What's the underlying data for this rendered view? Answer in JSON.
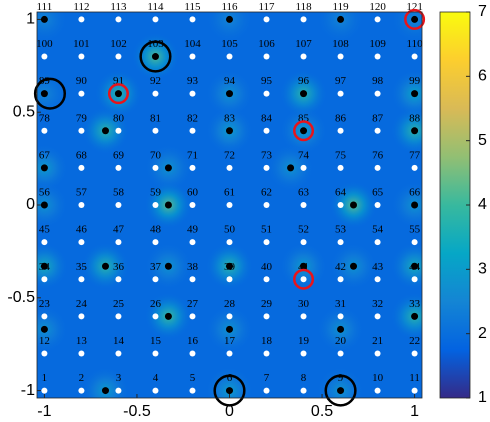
{
  "chart_data": {
    "type": "heatmap",
    "xlim": [
      -1.04,
      1.04
    ],
    "ylim": [
      -1.04,
      1.04
    ],
    "xticks": [
      -1,
      -0.5,
      0,
      0.5,
      1
    ],
    "yticks": [
      -1,
      -0.5,
      0,
      0.5,
      1
    ],
    "clim": [
      1,
      7
    ],
    "cticks": [
      1,
      2,
      3,
      4,
      5,
      6,
      7
    ],
    "colormap": [
      "#352a87",
      "#0363e1",
      "#1485d4",
      "#06a7c6",
      "#38b99e",
      "#92bf73",
      "#d9ba56",
      "#fcce2e",
      "#f9fb0e"
    ],
    "background_value": 1.9,
    "nodes": {
      "x": [
        -1,
        -0.8,
        -0.6,
        -0.4,
        -0.2,
        0,
        0.2,
        0.4,
        0.6,
        0.8,
        1
      ],
      "y": [
        -1,
        -0.8,
        -0.6,
        -0.4,
        -0.2,
        0,
        0.2,
        0.4,
        0.6,
        0.8,
        1
      ],
      "color": "#ffffff",
      "labels": [
        1,
        2,
        3,
        4,
        5,
        6,
        7,
        8,
        9,
        10,
        11,
        12,
        13,
        14,
        15,
        16,
        17,
        18,
        19,
        20,
        21,
        22,
        23,
        24,
        25,
        26,
        27,
        28,
        29,
        30,
        31,
        32,
        33,
        34,
        35,
        36,
        37,
        38,
        39,
        40,
        41,
        42,
        43,
        44,
        45,
        46,
        47,
        48,
        49,
        50,
        51,
        52,
        53,
        54,
        55,
        56,
        57,
        58,
        59,
        60,
        61,
        62,
        63,
        64,
        65,
        66,
        67,
        68,
        69,
        70,
        71,
        72,
        73,
        74,
        75,
        76,
        77,
        78,
        79,
        80,
        81,
        82,
        83,
        84,
        85,
        86,
        87,
        88,
        89,
        90,
        91,
        92,
        93,
        94,
        95,
        96,
        97,
        98,
        99,
        100,
        101,
        102,
        103,
        104,
        105,
        106,
        107,
        108,
        109,
        110,
        111,
        112,
        113,
        114,
        115,
        116,
        117,
        118,
        119,
        120,
        121
      ]
    },
    "sources": {
      "color": "#000000",
      "x": [
        -1,
        -0.4,
        0,
        0.6,
        1,
        -1,
        -0.6,
        0,
        0.4,
        1,
        -0.67,
        0,
        0.4,
        1,
        -1,
        -0.33,
        0.33,
        -0.33,
        0.67,
        -1,
        1,
        -1,
        -0.67,
        -0.33,
        0,
        0.4,
        0.67,
        1,
        -1,
        -0.33,
        1,
        0,
        0.6,
        -0.67,
        0,
        0.6
      ],
      "y": [
        1,
        0.8,
        1,
        1,
        1,
        0.6,
        0.6,
        0.6,
        0.6,
        0.6,
        0.4,
        0.4,
        0.4,
        0.4,
        0.2,
        0.2,
        0.2,
        0,
        0,
        0,
        0,
        -0.33,
        -0.33,
        -0.33,
        -0.33,
        -0.33,
        -0.33,
        -0.33,
        -0.67,
        -0.6,
        -0.6,
        -0.67,
        -0.67,
        -1,
        -1,
        -1
      ],
      "values": [
        2.5,
        4.2,
        2.5,
        2.5,
        2.5,
        2.5,
        3.8,
        2.8,
        3.8,
        3.2,
        3.8,
        3,
        3,
        3.8,
        3,
        2.8,
        2.8,
        4.3,
        4.3,
        2.8,
        2.8,
        3.5,
        3.8,
        2.8,
        3.8,
        3,
        2.8,
        3.5,
        2.8,
        4,
        3.8,
        2.8,
        2.8,
        3,
        3,
        2.8
      ]
    },
    "circles": [
      {
        "color": "#000000",
        "x": [
          -0.4,
          -0.97,
          0,
          0.6
        ],
        "y": [
          0.8,
          0.6,
          -1,
          -1
        ],
        "r": [
          0.08,
          0.08,
          0.08,
          0.08
        ]
      },
      {
        "color": "#e8141b",
        "x": [
          -0.6,
          0.4,
          0.4,
          1
        ],
        "y": [
          0.6,
          0.4,
          -0.4,
          1
        ],
        "r": [
          0.05,
          0.05,
          0.05,
          0.05
        ]
      }
    ]
  }
}
